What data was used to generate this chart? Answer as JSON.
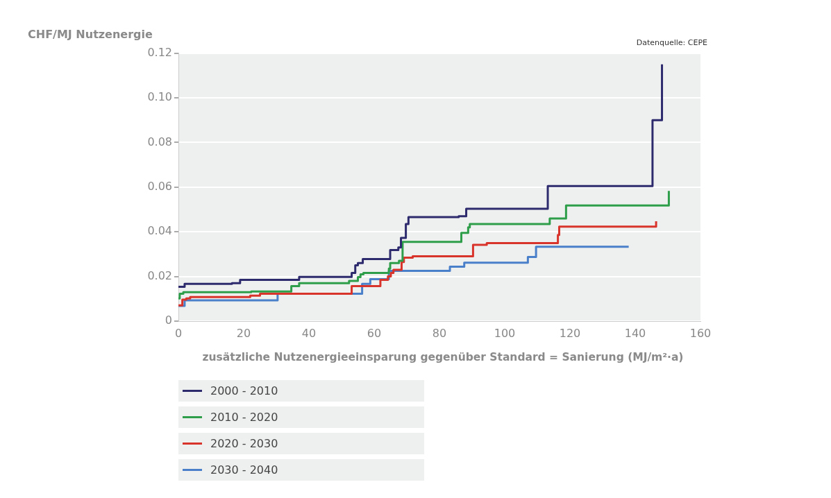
{
  "chart_data": {
    "type": "step",
    "xlabel": "zusätzliche Nutzenergieeinsparung gegenüber Standard = Sanierung (MJ/m²·a)",
    "ylabel": "CHF/MJ Nutzenergie",
    "annotations": [
      "Datenquelle: CEPE"
    ],
    "xlim": [
      0,
      160
    ],
    "xticks": [
      0,
      20,
      40,
      60,
      80,
      100,
      120,
      140,
      160
    ],
    "ylim": [
      0,
      0.12
    ],
    "yticks": [
      0,
      0.02,
      0.04,
      0.06,
      0.08,
      {
        "value": 0.1,
        "label": "0.10"
      },
      0.12
    ],
    "grid": "y",
    "legend": "bottom",
    "series": [
      {
        "name": "2000 - 2010",
        "color": "#2e2a6e",
        "x": [
          0,
          1.9,
          16.4,
          18.9,
          37,
          53.1,
          54.2,
          55,
          56.5,
          64.9,
          67.4,
          68.2,
          69.7,
          70.5,
          85.9,
          88.2,
          113.2,
          145.3,
          148.2
        ],
        "values": [
          0.0154,
          0.0167,
          0.017,
          0.0185,
          0.0198,
          0.0216,
          0.025,
          0.026,
          0.0278,
          0.0318,
          0.033,
          0.0373,
          0.0435,
          0.0466,
          0.047,
          0.0503,
          0.0605,
          0.09,
          0.115
        ]
      },
      {
        "name": "2010 - 2020",
        "color": "#2e9e4a",
        "x": [
          0,
          0.4,
          1.5,
          22.3,
          34.6,
          37,
          52.3,
          55,
          55.8,
          56.7,
          64.5,
          64.9,
          67.6,
          68.7,
          86.7,
          88.8,
          89.3,
          113.8,
          118.8,
          150.3
        ],
        "values": [
          0.0102,
          0.0123,
          0.013,
          0.0133,
          0.0157,
          0.017,
          0.018,
          0.0197,
          0.021,
          0.0216,
          0.0235,
          0.026,
          0.027,
          0.0355,
          0.0395,
          0.042,
          0.0435,
          0.046,
          0.0518,
          0.0583
        ]
      },
      {
        "name": "2020 - 2030",
        "color": "#d9342b",
        "x": [
          0,
          1.2,
          2.4,
          3.6,
          22,
          25,
          53.1,
          61.9,
          64.2,
          65.1,
          65.9,
          68.4,
          69.1,
          71.8,
          90.3,
          94.5,
          116.3,
          116.7,
          146.4
        ],
        "values": [
          0.0071,
          0.0096,
          0.0102,
          0.0108,
          0.0114,
          0.0123,
          0.0157,
          0.0185,
          0.02,
          0.0216,
          0.023,
          0.0265,
          0.0284,
          0.029,
          0.0342,
          0.0349,
          0.0386,
          0.0423,
          0.0447
        ]
      },
      {
        "name": "2030 - 2040",
        "color": "#4a7fc9",
        "x": [
          0,
          1.9,
          30.4,
          56.3,
          58.8,
          64.5,
          83.2,
          87.6,
          107.1,
          109.6,
          138
        ],
        "values": [
          0.0068,
          0.0093,
          0.0123,
          0.0167,
          0.0188,
          0.0225,
          0.0244,
          0.0262,
          0.0287,
          0.0333,
          0.0333
        ]
      }
    ]
  }
}
